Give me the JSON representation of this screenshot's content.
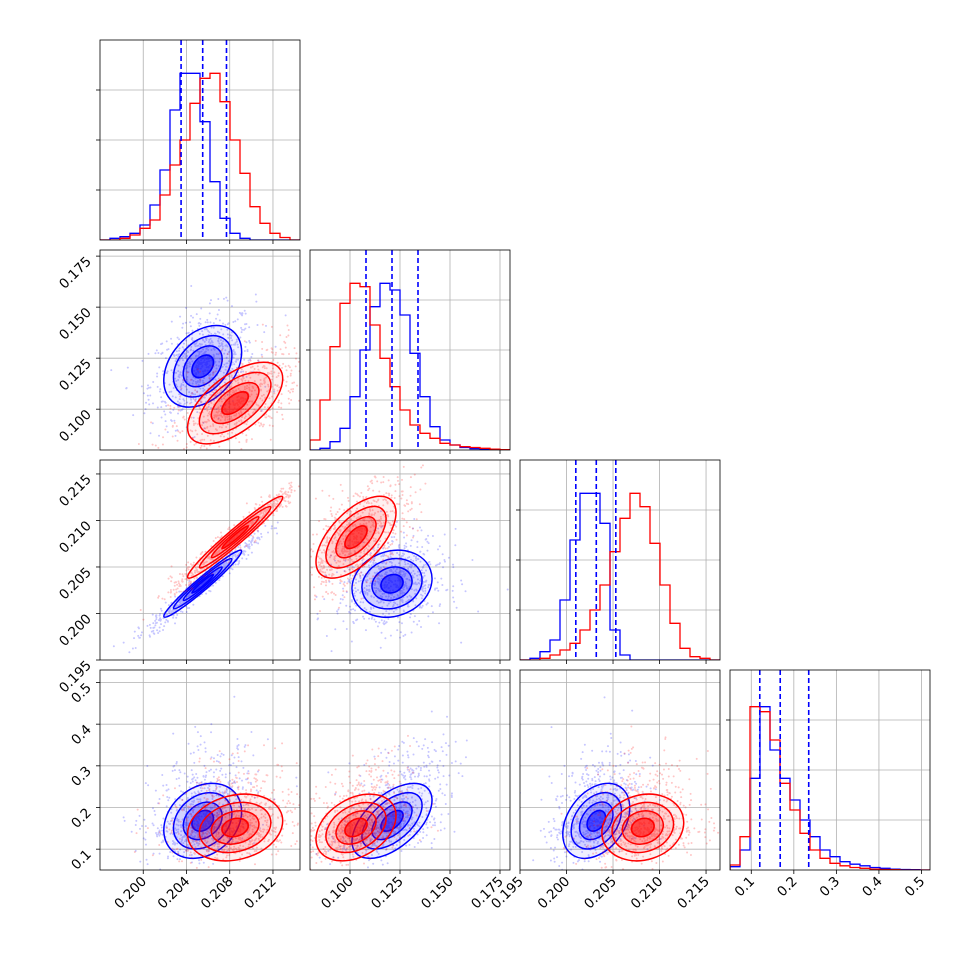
{
  "chart_data": {
    "type": "corner",
    "colors": {
      "blue": "#0000ff",
      "red": "#ff0000",
      "grid": "#b0b0b0"
    },
    "series": [
      {
        "color": "#0000ff",
        "hist": [
          {
            "bins": [
              0.196,
              0.2145
            ],
            "counts": [
              0,
              0.01,
              0.02,
              0.04,
              0.09,
              0.21,
              0.42,
              0.78,
              1.0,
              1.0,
              0.71,
              0.35,
              0.13,
              0.04,
              0.01,
              0,
              0,
              0,
              0,
              0
            ]
          },
          {
            "bins": [
              0.08,
              0.18
            ],
            "counts": [
              0,
              0.01,
              0.05,
              0.13,
              0.32,
              0.6,
              0.86,
              1.0,
              0.96,
              0.81,
              0.58,
              0.32,
              0.14,
              0.06,
              0.03,
              0.015,
              0.008,
              0.004,
              0.002,
              0.001
            ]
          },
          {
            "bins": [
              0.195,
              0.2165
            ],
            "counts": [
              0,
              0.01,
              0.05,
              0.12,
              0.36,
              0.72,
              1.0,
              1.0,
              0.82,
              0.18,
              0.03,
              0,
              0,
              0,
              0,
              0,
              0,
              0,
              0,
              0
            ]
          },
          {
            "bins": [
              0.05,
              0.52
            ],
            "counts": [
              0.02,
              0.12,
              0.55,
              0.98,
              0.72,
              0.55,
              0.42,
              0.3,
              0.2,
              0.12,
              0.08,
              0.05,
              0.035,
              0.025,
              0.015,
              0.01,
              0.005,
              0.003,
              0.002,
              0
            ]
          }
        ],
        "quantiles": [
          [
            0.2035,
            0.2055,
            0.2077
          ],
          [
            0.108,
            0.121,
            0.134
          ],
          [
            0.201,
            0.2032,
            0.2053
          ],
          [
            0.12,
            0.168,
            0.235
          ]
        ],
        "centers": [
          0.2055,
          0.121,
          0.2032,
          0.168
        ],
        "spreads": [
          0.0018,
          0.01,
          0.0018,
          0.045
        ]
      },
      {
        "color": "#ff0000",
        "hist": [
          {
            "bins": [
              0.196,
              0.2145
            ],
            "counts": [
              0,
              0,
              0.01,
              0.03,
              0.07,
              0.12,
              0.27,
              0.45,
              0.6,
              0.82,
              0.97,
              1.0,
              0.83,
              0.6,
              0.4,
              0.2,
              0.1,
              0.04,
              0.015,
              0
            ]
          },
          {
            "bins": [
              0.08,
              0.18
            ],
            "counts": [
              0.06,
              0.3,
              0.62,
              0.88,
              1.0,
              0.98,
              0.75,
              0.55,
              0.38,
              0.24,
              0.15,
              0.1,
              0.07,
              0.04,
              0.03,
              0.02,
              0.015,
              0.01,
              0.005,
              0.002
            ]
          },
          {
            "bins": [
              0.195,
              0.2165
            ],
            "counts": [
              0,
              0,
              0.01,
              0.03,
              0.06,
              0.1,
              0.18,
              0.3,
              0.45,
              0.65,
              0.85,
              1.0,
              0.92,
              0.7,
              0.45,
              0.22,
              0.07,
              0.02,
              0.01,
              0
            ]
          },
          {
            "bins": [
              0.05,
              0.52
            ],
            "counts": [
              0.03,
              0.2,
              0.98,
              0.95,
              0.78,
              0.52,
              0.36,
              0.22,
              0.12,
              0.07,
              0.04,
              0.025,
              0.015,
              0.01,
              0.005,
              0.003,
              0.002,
              0,
              0,
              0
            ]
          }
        ],
        "centers": [
          0.2085,
          0.103,
          0.2082,
          0.152
        ],
        "spreads": [
          0.0022,
          0.01,
          0.0022,
          0.04
        ]
      }
    ],
    "panels": [
      {
        "row": 0,
        "col": 0,
        "xlim": [
          0.196,
          0.2145
        ],
        "ylim": [
          0,
          1.2
        ]
      },
      {
        "row": 1,
        "col": 0,
        "xlim": [
          0.196,
          0.2145
        ],
        "ylim": [
          0.08,
          0.178
        ]
      },
      {
        "row": 1,
        "col": 1,
        "xlim": [
          0.08,
          0.18
        ],
        "ylim": [
          0,
          1.2
        ]
      },
      {
        "row": 2,
        "col": 0,
        "xlim": [
          0.196,
          0.2145
        ],
        "ylim": [
          0.195,
          0.2165
        ]
      },
      {
        "row": 2,
        "col": 1,
        "xlim": [
          0.08,
          0.18
        ],
        "ylim": [
          0.195,
          0.2165
        ]
      },
      {
        "row": 2,
        "col": 2,
        "xlim": [
          0.195,
          0.2165
        ],
        "ylim": [
          0,
          1.2
        ]
      },
      {
        "row": 3,
        "col": 0,
        "xlim": [
          0.196,
          0.2145
        ],
        "ylim": [
          0.05,
          0.53
        ]
      },
      {
        "row": 3,
        "col": 1,
        "xlim": [
          0.08,
          0.18
        ],
        "ylim": [
          0.05,
          0.53
        ]
      },
      {
        "row": 3,
        "col": 2,
        "xlim": [
          0.195,
          0.2165
        ],
        "ylim": [
          0.05,
          0.53
        ]
      },
      {
        "row": 3,
        "col": 3,
        "xlim": [
          0.05,
          0.52
        ],
        "ylim": [
          0,
          1.2
        ]
      }
    ],
    "xticks": [
      {
        "col": 0,
        "values": [
          0.2,
          0.204,
          0.208,
          0.212
        ],
        "labels": [
          "0.200",
          "0.204",
          "0.208",
          "0.212"
        ]
      },
      {
        "col": 1,
        "values": [
          0.1,
          0.125,
          0.15,
          0.175
        ],
        "labels": [
          "0.100",
          "0.125",
          "0.150",
          "0.175"
        ]
      },
      {
        "col": 2,
        "values": [
          0.195,
          0.2,
          0.205,
          0.21,
          0.215
        ],
        "labels": [
          "0.195",
          "0.200",
          "0.205",
          "0.210",
          "0.215"
        ]
      },
      {
        "col": 3,
        "values": [
          0.1,
          0.2,
          0.3,
          0.4,
          0.5
        ],
        "labels": [
          "0.1",
          "0.2",
          "0.3",
          "0.4",
          "0.5"
        ]
      }
    ],
    "yticks": [
      {
        "row": 1,
        "values": [
          0.1,
          0.125,
          0.15,
          0.175
        ],
        "labels": [
          "0.100",
          "0.125",
          "0.150",
          "0.175"
        ]
      },
      {
        "row": 2,
        "values": [
          0.195,
          0.2,
          0.205,
          0.21,
          0.215
        ],
        "labels": [
          "0.195",
          "0.200",
          "0.205",
          "0.210",
          "0.215"
        ]
      },
      {
        "row": 3,
        "values": [
          0.1,
          0.2,
          0.3,
          0.4,
          0.5
        ],
        "labels": [
          "0.1",
          "0.2",
          "0.3",
          "0.4",
          "0.5"
        ]
      }
    ],
    "correlations": {
      "blue": {
        "1-0": 0.35,
        "2-0": 0.97,
        "2-1": 0.15,
        "3-0": 0.25,
        "3-1": 0.55,
        "3-2": 0.35
      },
      "red": {
        "1-0": 0.6,
        "2-0": 0.97,
        "2-1": 0.6,
        "3-0": 0.2,
        "3-1": 0.35,
        "3-2": 0.15
      }
    },
    "hist_bins": 20,
    "grid": true
  }
}
